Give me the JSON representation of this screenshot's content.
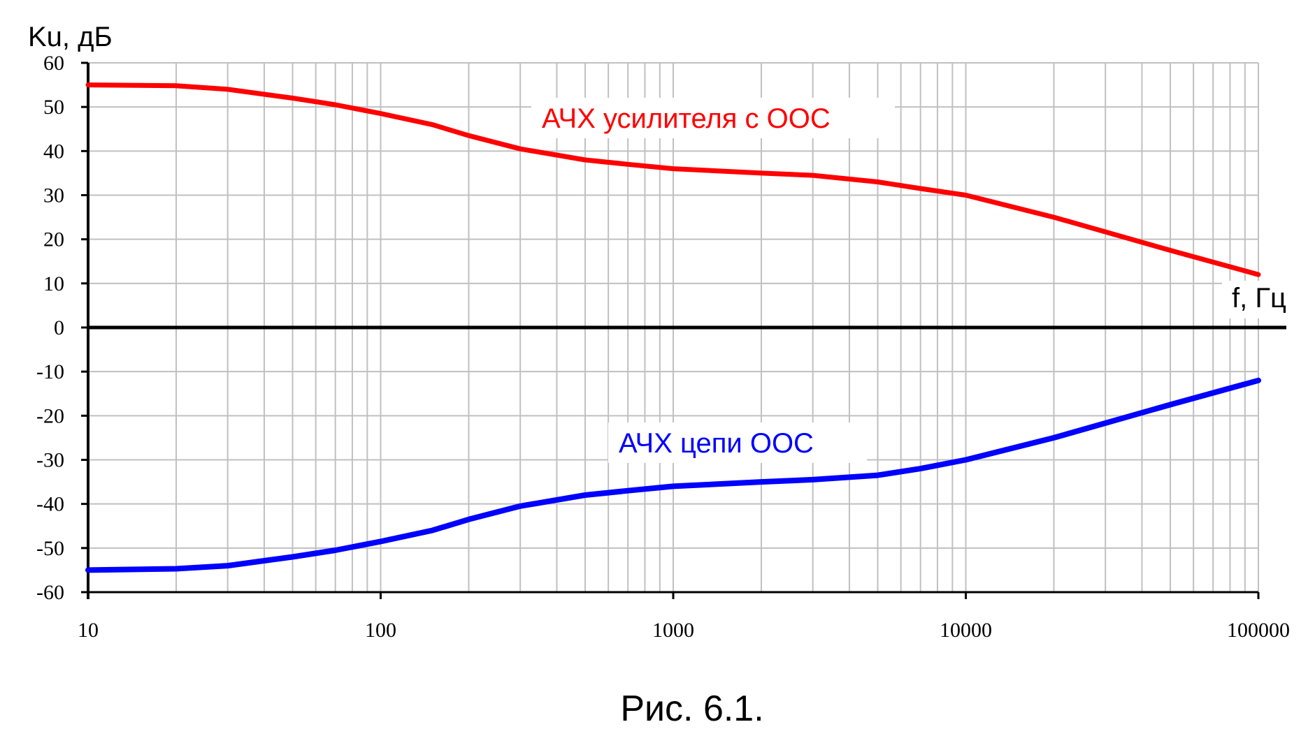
{
  "chart_data": {
    "type": "line",
    "title": "",
    "xlabel": "f, Гц",
    "ylabel": "Ku, дБ",
    "xscale": "log",
    "xlim": [
      10,
      100000
    ],
    "ylim": [
      -60,
      60
    ],
    "x_ticks": [
      10,
      100,
      1000,
      10000,
      100000
    ],
    "x_tick_labels": [
      "10",
      "100",
      "1000",
      "10000",
      "100000"
    ],
    "y_ticks": [
      60,
      50,
      40,
      30,
      20,
      10,
      0,
      -10,
      -20,
      -30,
      -40,
      -50,
      -60
    ],
    "y_tick_labels": [
      "60",
      "50",
      "40",
      "30",
      "20",
      "10",
      "0",
      "-10",
      "-20",
      "-30",
      "-40",
      "-50",
      "-60"
    ],
    "grid": true,
    "series": [
      {
        "name": "АЧХ усилителя с ООС",
        "color": "#ff0000",
        "x": [
          10,
          20,
          30,
          50,
          70,
          100,
          150,
          200,
          300,
          500,
          700,
          1000,
          2000,
          3000,
          5000,
          7000,
          10000,
          20000,
          50000,
          100000
        ],
        "y": [
          55,
          54.8,
          54,
          52,
          50.5,
          48.5,
          46,
          43.5,
          40.5,
          38,
          37,
          36,
          35,
          34.5,
          33,
          31.5,
          30,
          25,
          17.5,
          12
        ]
      },
      {
        "name": "АЧХ цепи ООС",
        "color": "#0000ff",
        "x": [
          10,
          20,
          30,
          50,
          70,
          100,
          150,
          200,
          300,
          500,
          700,
          1000,
          2000,
          3000,
          5000,
          7000,
          10000,
          20000,
          50000,
          100000
        ],
        "y": [
          -55,
          -54.7,
          -54,
          -52,
          -50.5,
          -48.5,
          -46,
          -43.5,
          -40.5,
          -38,
          -37,
          -36,
          -35,
          -34.5,
          -33.5,
          -32,
          -30,
          -25,
          -17.5,
          -12
        ]
      }
    ]
  },
  "caption": "Рис. 6.1."
}
